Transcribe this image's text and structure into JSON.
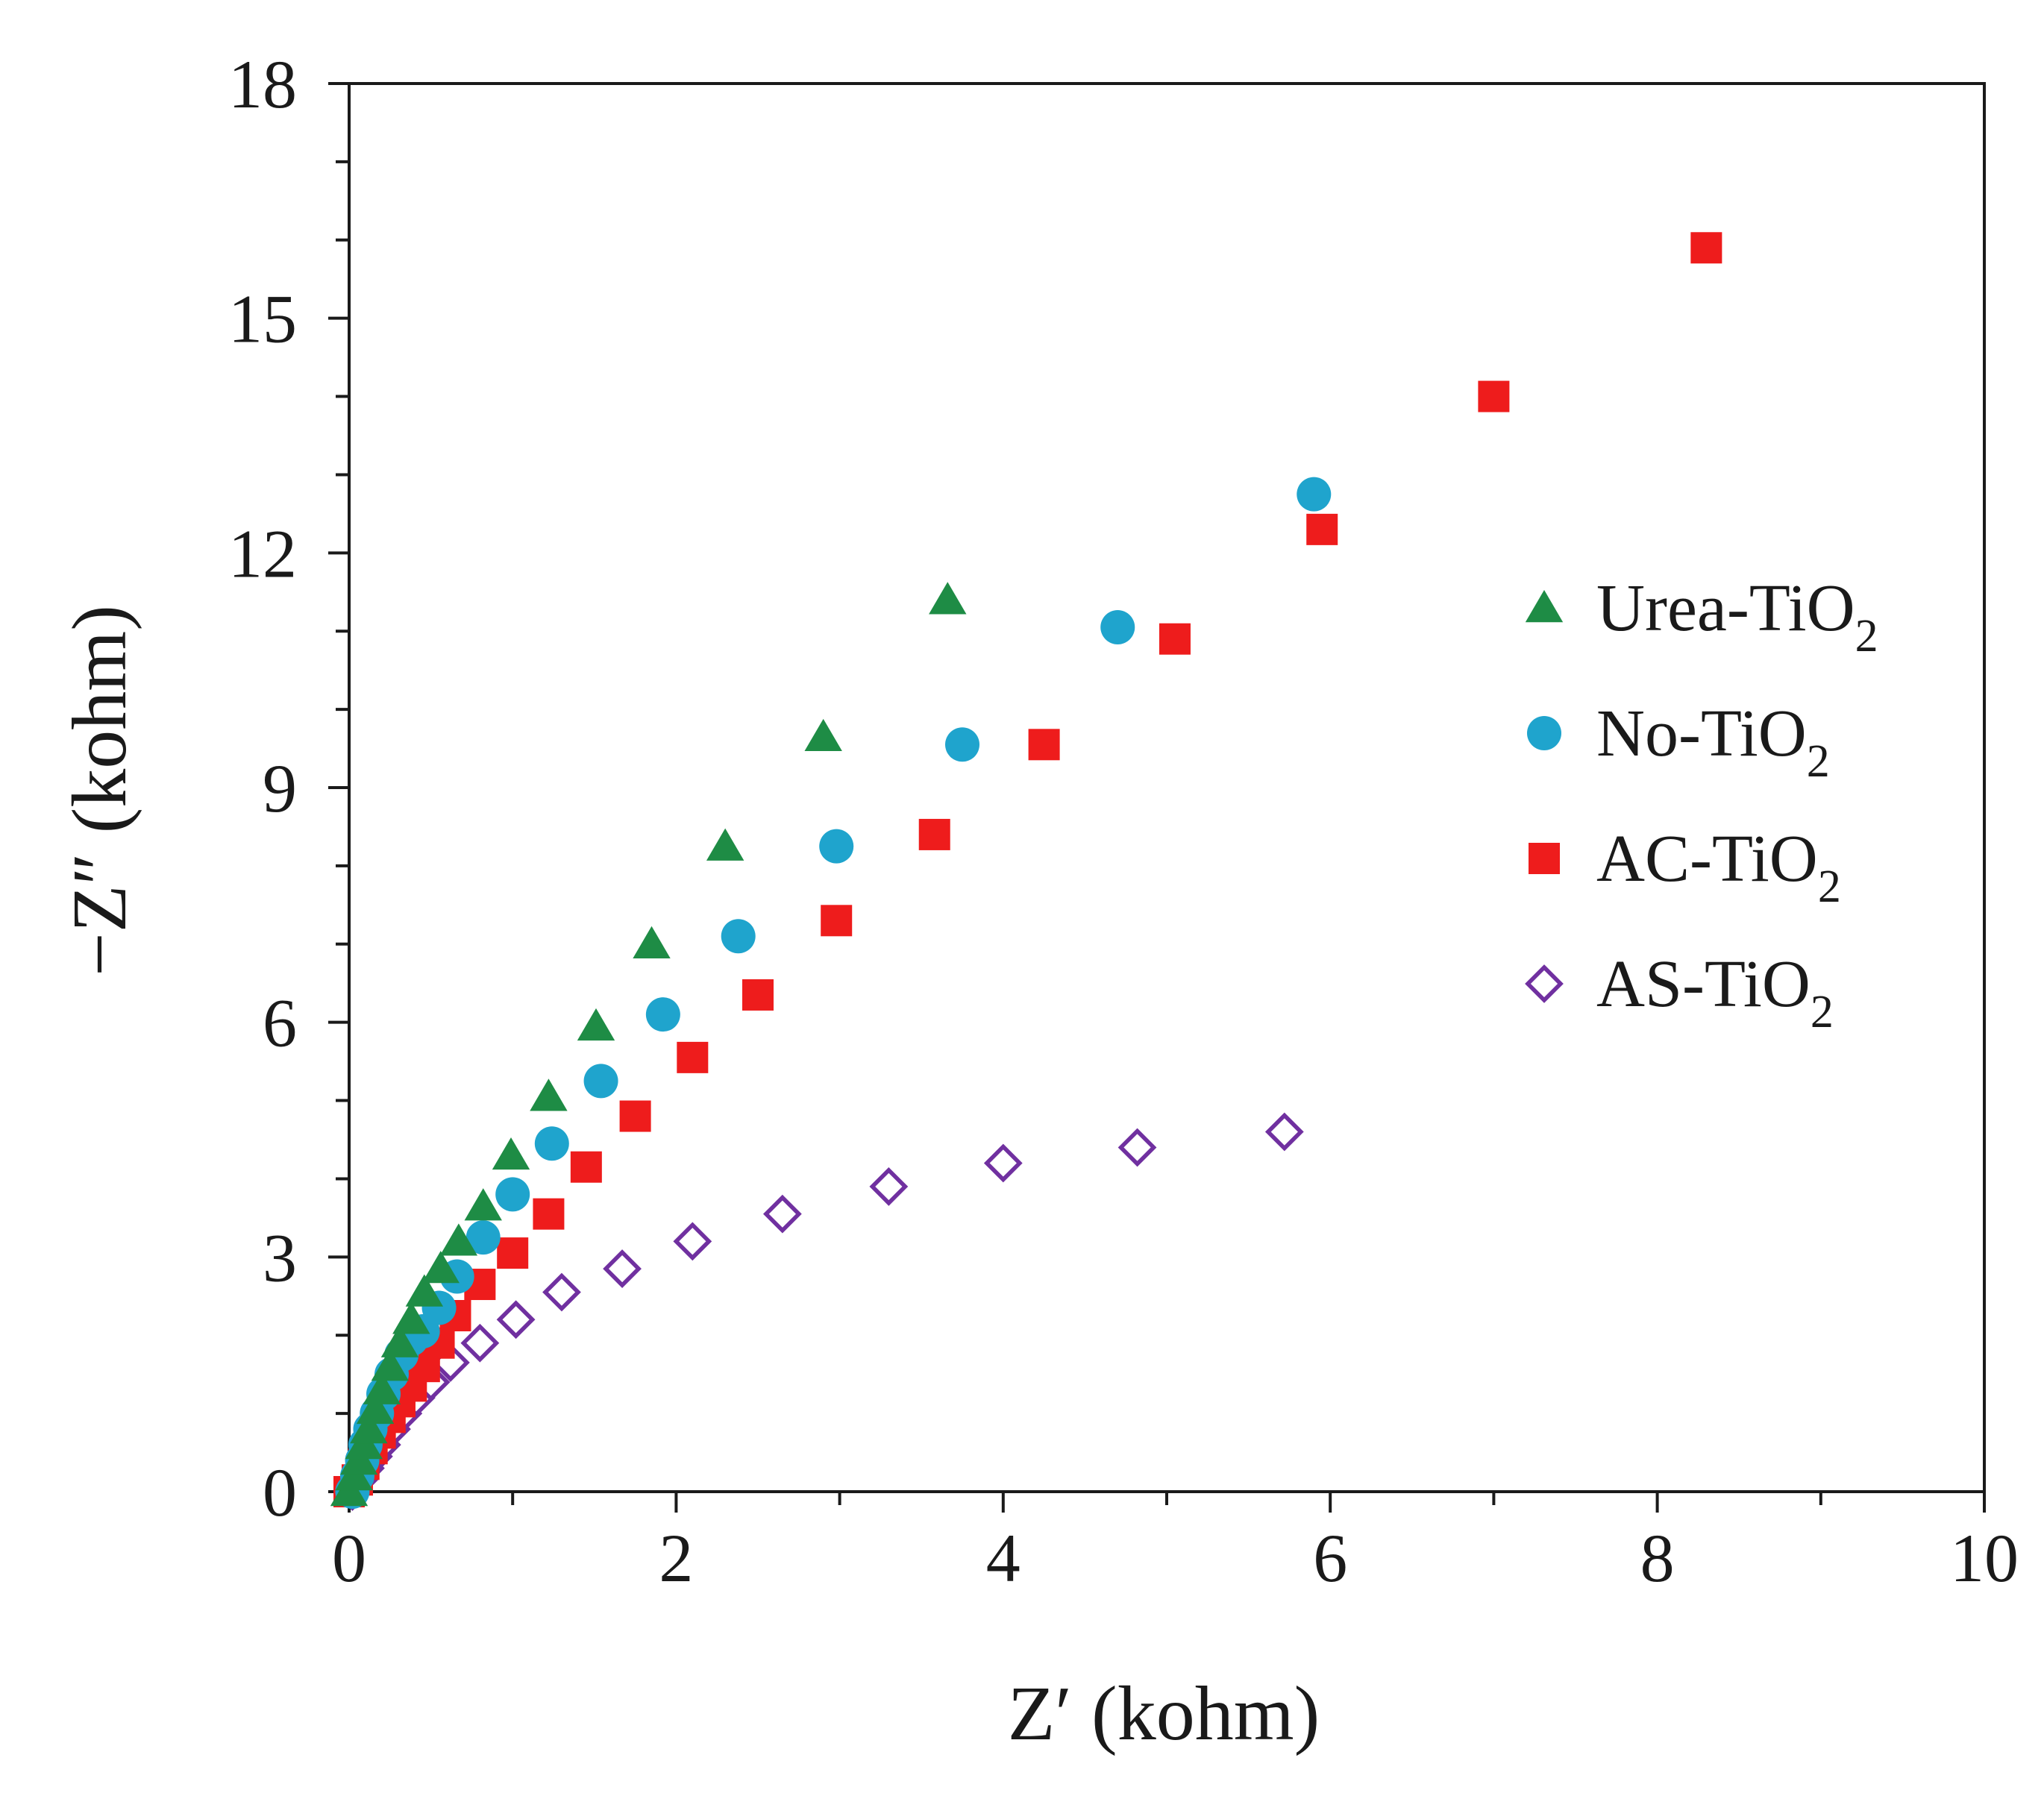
{
  "chart_data": {
    "type": "scatter",
    "title": "",
    "xlabel": "Z′ (kohm)",
    "ylabel": "−Z″ (kohm)",
    "xlim": [
      0,
      10
    ],
    "ylim": [
      0,
      18
    ],
    "x_ticks": [
      0,
      2,
      4,
      6,
      8,
      10
    ],
    "y_ticks": [
      0,
      3,
      6,
      9,
      12,
      15,
      18
    ],
    "x_tick_labels": [
      "0",
      "2",
      "4",
      "6",
      "8",
      "10"
    ],
    "y_tick_labels": [
      "0",
      "3",
      "6",
      "9",
      "12",
      "15",
      "18"
    ],
    "grid": false,
    "legend_position": "right",
    "series": [
      {
        "name": "Urea-TiO",
        "sub": "2",
        "marker": "triangle",
        "color": "#1e8c45",
        "points": [
          [
            0.0,
            0.0
          ],
          [
            0.03,
            0.2
          ],
          [
            0.06,
            0.4
          ],
          [
            0.09,
            0.6
          ],
          [
            0.12,
            0.8
          ],
          [
            0.16,
            1.05
          ],
          [
            0.2,
            1.3
          ],
          [
            0.25,
            1.6
          ],
          [
            0.31,
            1.9
          ],
          [
            0.38,
            2.2
          ],
          [
            0.46,
            2.55
          ],
          [
            0.56,
            2.85
          ],
          [
            0.67,
            3.2
          ],
          [
            0.82,
            3.65
          ],
          [
            0.99,
            4.3
          ],
          [
            1.22,
            5.05
          ],
          [
            1.51,
            5.95
          ],
          [
            1.85,
            7.0
          ],
          [
            2.3,
            8.25
          ],
          [
            2.9,
            9.65
          ],
          [
            3.66,
            11.4
          ]
        ]
      },
      {
        "name": "No-TiO",
        "sub": "2",
        "marker": "circle",
        "color": "#1fa4cd",
        "points": [
          [
            0.02,
            0.0
          ],
          [
            0.05,
            0.2
          ],
          [
            0.08,
            0.4
          ],
          [
            0.1,
            0.6
          ],
          [
            0.13,
            0.8
          ],
          [
            0.17,
            1.0
          ],
          [
            0.21,
            1.25
          ],
          [
            0.26,
            1.5
          ],
          [
            0.32,
            1.75
          ],
          [
            0.38,
            1.95
          ],
          [
            0.45,
            2.05
          ],
          [
            0.55,
            2.35
          ],
          [
            0.66,
            2.75
          ],
          [
            0.82,
            3.25
          ],
          [
            1.0,
            3.8
          ],
          [
            1.24,
            4.45
          ],
          [
            1.54,
            5.25
          ],
          [
            1.92,
            6.1
          ],
          [
            2.38,
            7.1
          ],
          [
            2.98,
            8.25
          ],
          [
            3.75,
            9.55
          ],
          [
            4.7,
            11.05
          ],
          [
            5.9,
            12.75
          ]
        ]
      },
      {
        "name": "AC-TiO",
        "sub": "2",
        "marker": "square",
        "color": "#ee1c1c",
        "points": [
          [
            0.0,
            0.0
          ],
          [
            0.05,
            0.15
          ],
          [
            0.09,
            0.35
          ],
          [
            0.14,
            0.55
          ],
          [
            0.19,
            0.75
          ],
          [
            0.25,
            0.95
          ],
          [
            0.31,
            1.15
          ],
          [
            0.38,
            1.35
          ],
          [
            0.46,
            1.6
          ],
          [
            0.55,
            1.9
          ],
          [
            0.65,
            2.25
          ],
          [
            0.8,
            2.65
          ],
          [
            1.0,
            3.05
          ],
          [
            1.22,
            3.55
          ],
          [
            1.45,
            4.15
          ],
          [
            1.75,
            4.8
          ],
          [
            2.1,
            5.55
          ],
          [
            2.5,
            6.35
          ],
          [
            2.98,
            7.3
          ],
          [
            3.58,
            8.4
          ],
          [
            4.25,
            9.55
          ],
          [
            5.05,
            10.9
          ],
          [
            5.95,
            12.3
          ],
          [
            7.0,
            14.0
          ],
          [
            8.3,
            15.9
          ]
        ]
      },
      {
        "name": "AS-TiO",
        "sub": "2",
        "marker": "diamond",
        "color": "#7030a0",
        "points": [
          [
            0.02,
            0.0
          ],
          [
            0.06,
            0.15
          ],
          [
            0.1,
            0.3
          ],
          [
            0.15,
            0.45
          ],
          [
            0.2,
            0.6
          ],
          [
            0.26,
            0.8
          ],
          [
            0.33,
            1.0
          ],
          [
            0.41,
            1.2
          ],
          [
            0.5,
            1.4
          ],
          [
            0.62,
            1.65
          ],
          [
            0.8,
            1.9
          ],
          [
            1.02,
            2.2
          ],
          [
            1.3,
            2.55
          ],
          [
            1.67,
            2.85
          ],
          [
            2.1,
            3.2
          ],
          [
            2.65,
            3.55
          ],
          [
            3.3,
            3.9
          ],
          [
            4.0,
            4.2
          ],
          [
            4.82,
            4.4
          ],
          [
            5.72,
            4.6
          ]
        ]
      }
    ]
  }
}
